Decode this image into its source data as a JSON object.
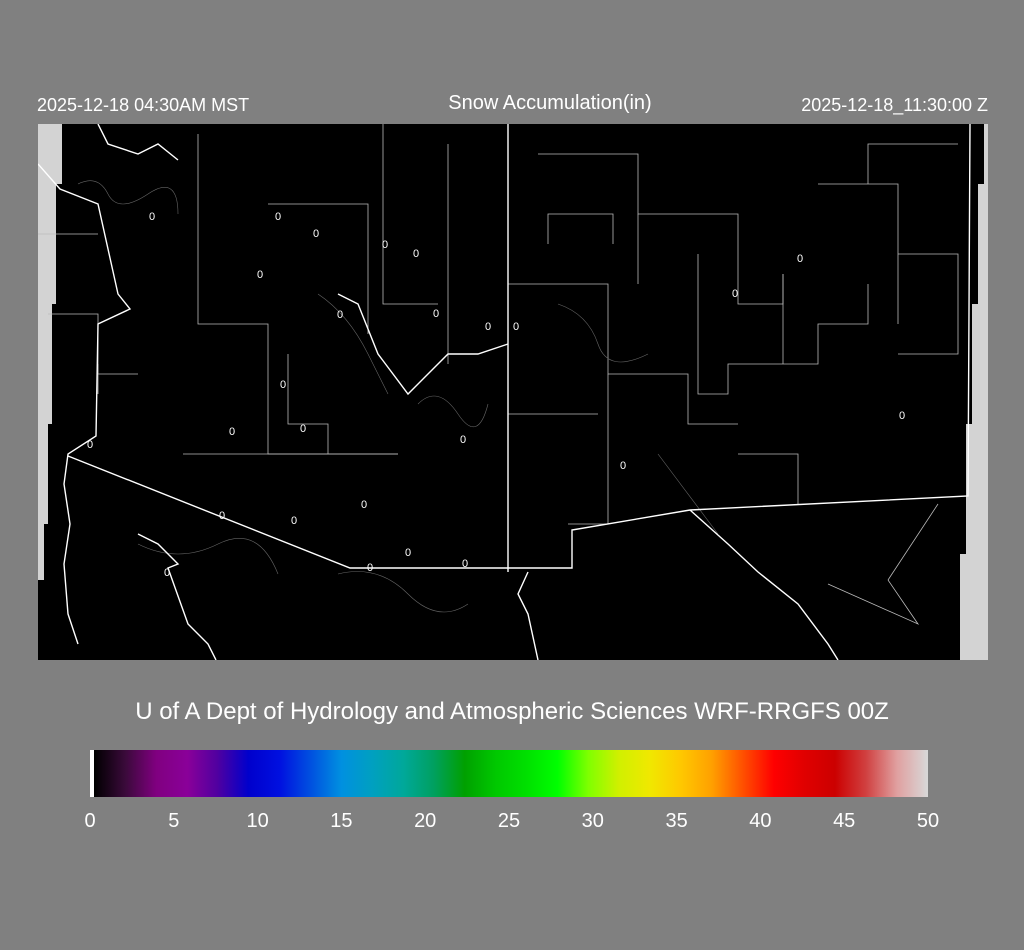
{
  "header": {
    "local_time": "2025-12-18 04:30AM MST",
    "title": "Snow Accumulation(in)",
    "utc_time": "2025-12-18_11:30:00 Z"
  },
  "map": {
    "background": "#000000",
    "boundary_color": "#ffffff",
    "no_data_color": "#d3d3d3",
    "contour_value_label": "0"
  },
  "credit": "U of A Dept of Hydrology and Atmospheric Sciences WRF-RRGFS 00Z",
  "colorbar": {
    "min": 0,
    "max": 50,
    "ticks": [
      "0",
      "5",
      "10",
      "15",
      "20",
      "25",
      "30",
      "35",
      "40",
      "45",
      "50"
    ],
    "colors": [
      "#ffffff",
      "#000000",
      "#3a0a3a",
      "#800080",
      "#8a0099",
      "#5000a0",
      "#0000cc",
      "#0010e0",
      "#0050e0",
      "#0090e0",
      "#00a0c0",
      "#00a89a",
      "#00a060",
      "#00a000",
      "#00c800",
      "#00e000",
      "#00ff00",
      "#80ff00",
      "#d0f000",
      "#f0e800",
      "#ffc800",
      "#ffa000",
      "#ff5000",
      "#ff0000",
      "#e00000",
      "#cc0000",
      "#d04040",
      "#e0a0a0",
      "#d8d8d8"
    ]
  }
}
